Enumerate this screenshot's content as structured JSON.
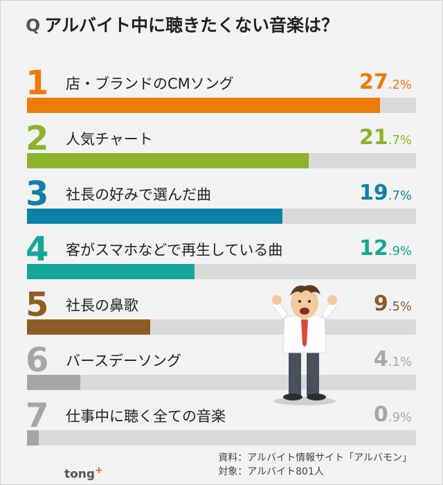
{
  "chart_data": {
    "type": "bar",
    "title": "アルバイト中に聴きたくない音楽は？",
    "title_prefix": "Q",
    "categories": [
      "店・ブランドのCMソング",
      "人気チャート",
      "社長の好みで選んだ曲",
      "客がスマホなどで再生している曲",
      "社長の鼻歌",
      "バースデーソング",
      "仕事中に聴く全ての音楽"
    ],
    "ranks": [
      "1",
      "2",
      "3",
      "4",
      "5",
      "6",
      "7"
    ],
    "values": [
      27.2,
      21.7,
      19.7,
      12.9,
      9.5,
      4.1,
      0.9
    ],
    "value_labels_int": [
      "27",
      "21",
      "19",
      "12",
      "9",
      "4",
      "0"
    ],
    "value_labels_dec": [
      ".2%",
      ".7%",
      ".7%",
      ".9%",
      ".5%",
      ".1%",
      ".9%"
    ],
    "colors": [
      "#ee7a0a",
      "#8bb32b",
      "#0f80a6",
      "#14a79a",
      "#8d5c25",
      "#a6a6a6",
      "#a6a6a6"
    ],
    "value_max": 30
  },
  "footer": {
    "source": "資料：アルバイト情報サイト「アルバモン」",
    "target": "対象：アルバイト801人",
    "logo": "tong",
    "logo_plus": "+"
  }
}
